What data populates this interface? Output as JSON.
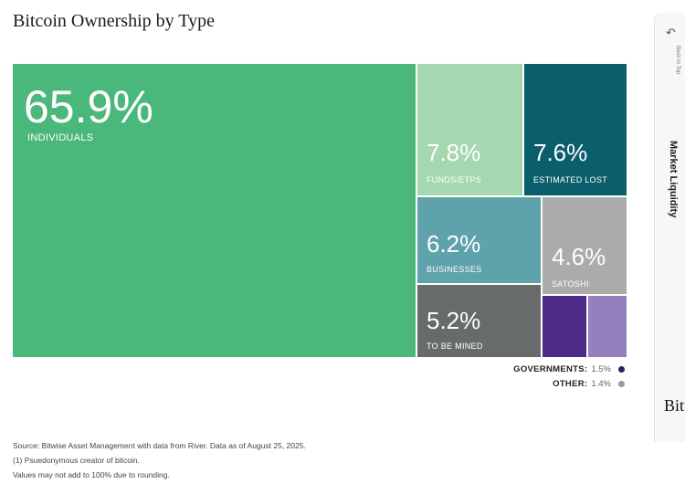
{
  "chart_data": {
    "type": "treemap",
    "title": "Bitcoin Ownership by Type",
    "unit": "%",
    "segments": [
      {
        "key": "individuals",
        "label": "INDIVIDUALS",
        "value": 65.9,
        "display": "65.9%",
        "color": "#4ab87a"
      },
      {
        "key": "funds",
        "label": "FUNDS/ETPS",
        "value": 7.8,
        "display": "7.8%",
        "color": "#a5d8b0"
      },
      {
        "key": "lost",
        "label": "ESTIMATED LOST",
        "value": 7.6,
        "display": "7.6%",
        "color": "#0b5e6b"
      },
      {
        "key": "businesses",
        "label": "BUSINESSES",
        "value": 6.2,
        "display": "6.2%",
        "color": "#5ea2ab"
      },
      {
        "key": "satoshi",
        "label": "SATOSHI",
        "value": 4.6,
        "display": "4.6%",
        "color": "#ababab"
      },
      {
        "key": "mined",
        "label": "TO BE MINED",
        "value": 5.2,
        "display": "5.2%",
        "color": "#676c6b"
      },
      {
        "key": "governments",
        "label": "GOVERNMENTS",
        "value": 1.5,
        "display": "",
        "color": "#4d2a88"
      },
      {
        "key": "other",
        "label": "OTHER",
        "value": 1.4,
        "display": "",
        "color": "#9480bd"
      }
    ],
    "legend": [
      {
        "label": "GOVERNMENTS:",
        "value": "1.5%",
        "color": "#2b2365"
      },
      {
        "label": "OTHER:",
        "value": "1.4%",
        "color": "#9a9a9a"
      }
    ]
  },
  "footnotes": {
    "source": "Source: Bitwise Asset Management with data from River. Data as of August 25, 2025.",
    "note1": "(1) Psuedonymous creator of bitcoin.",
    "note2": "Values may not add to 100% due to rounding."
  },
  "side_panel": {
    "back_icon": "back-arrow-icon",
    "back_label": "Back to Top",
    "section_label": "Market Liquidity",
    "brand": "Bitwise"
  }
}
